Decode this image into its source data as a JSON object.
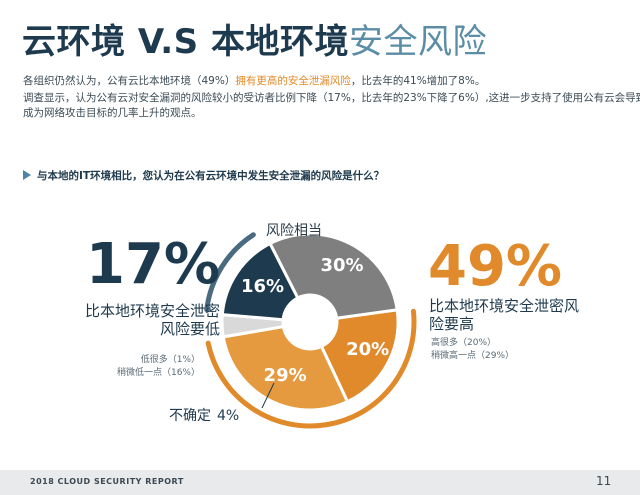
{
  "title": {
    "dark": "云环境 V.S 本地环境",
    "accent": "安全风险"
  },
  "paragraph": {
    "line1_a": "各组织仍然认为，公有云比本地环境（49%）",
    "line1_hl": "拥有更高的安全泄漏风险",
    "line1_b": "，比去年的41%增加了8%。",
    "line2": "调查显示，认为公有云对安全漏洞的风险较小的受访者比例下降（17%，比去年的23%下降了6%）,这进一步支持了使用公有云会导致",
    "line3": "成为网络攻击目标的几率上升的观点。"
  },
  "question": "与本地的IT环境相比，您认为在公有云环境中发生安全泄漏的风险是什么？",
  "left": {
    "big": "17%",
    "label_line1": "比本地环境安全泄密",
    "label_line2": "风险要低",
    "sub1": "低很多（1%）",
    "sub2": "稍微低一点（16%）"
  },
  "right": {
    "big": "49%",
    "label_line1": "比本地环境安全泄密风",
    "label_line2": "险要高",
    "sub1": "高很多（20%）",
    "sub2": "稍微高一点（29%）"
  },
  "labels": {
    "same": "风险相当",
    "unsure": "不确定",
    "unsure_pct": "4%"
  },
  "chart_data": {
    "type": "pie",
    "categories": [
      "风险相当",
      "高很多",
      "稍微高一点",
      "不确定",
      "稍微低一点"
    ],
    "values": [
      30,
      20,
      29,
      4,
      16
    ],
    "value_labels": [
      "30%",
      "20%",
      "29%",
      "",
      "16%"
    ],
    "colors": [
      "#7f7f7f",
      "#e08a2b",
      "#e59a3f",
      "#d9d9d9",
      "#1e3a4f"
    ],
    "donut": true
  },
  "footer": {
    "left": "2018 CLOUD SECURITY REPORT",
    "page": "11"
  }
}
